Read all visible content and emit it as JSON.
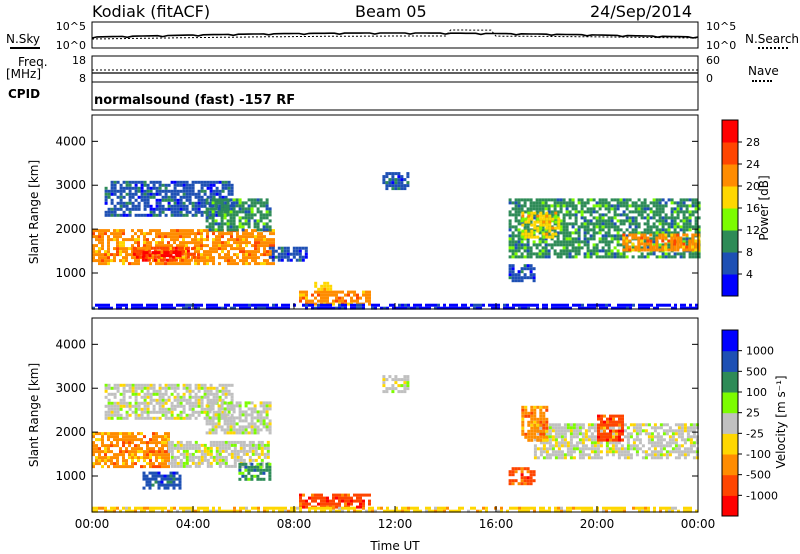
{
  "header": {
    "station": "Kodiak (fitACF)",
    "beam": "Beam 05",
    "date": "24/Sep/2014"
  },
  "status_panels": {
    "nsky_label": "N.Sky",
    "nsky_ticks": [
      "10^5",
      "10^0"
    ],
    "nsearch_label": "N.Search",
    "nsearch_ticks": [
      "10^5",
      "10^0"
    ],
    "freq_label": "Freq.",
    "freq_unit": "[MHz]",
    "freq_ticks": [
      "18",
      "8"
    ],
    "nave_label": "Nave",
    "nave_ticks": [
      "60",
      "0"
    ],
    "cpid_label": "CPID",
    "cpid_text": "normalsound (fast) -157 RF"
  },
  "chart_data": [
    {
      "type": "heatmap",
      "name": "power",
      "ylabel": "Slant Range [km]",
      "yticks": [
        "4000",
        "3000",
        "2000",
        "1000"
      ],
      "ylim": [
        180,
        4600
      ],
      "xlim": [
        0,
        24
      ],
      "xticks": [],
      "colorbar_label": "Power [dB]",
      "colorbar_ticks": [
        "28",
        "24",
        "20",
        "16",
        "12",
        "8",
        "4"
      ],
      "colors": [
        "#0000ff",
        "#1e50b4",
        "#2e8b57",
        "#7cfc00",
        "#ffd700",
        "#ff8c00",
        "#ff4500",
        "#ff0000"
      ],
      "regions": [
        {
          "t0": 0.0,
          "t1": 7.2,
          "r0": 1200,
          "r1": 2000,
          "level": 5
        },
        {
          "t0": 1.5,
          "t1": 4.0,
          "r0": 1300,
          "r1": 1600,
          "level": 6
        },
        {
          "t0": 2.0,
          "t1": 3.5,
          "r0": 1400,
          "r1": 1500,
          "level": 7
        },
        {
          "t0": 0.5,
          "t1": 5.5,
          "r0": 2300,
          "r1": 3100,
          "level": 1
        },
        {
          "t0": 4.5,
          "t1": 7.0,
          "r0": 2000,
          "r1": 2700,
          "level": 2
        },
        {
          "t0": 7.0,
          "t1": 8.5,
          "r0": 1300,
          "r1": 1600,
          "level": 1
        },
        {
          "t0": 8.2,
          "t1": 11.0,
          "r0": 300,
          "r1": 600,
          "level": 5
        },
        {
          "t0": 8.8,
          "t1": 9.5,
          "r0": 600,
          "r1": 800,
          "level": 4
        },
        {
          "t0": 11.5,
          "t1": 12.5,
          "r0": 2900,
          "r1": 3300,
          "level": 1
        },
        {
          "t0": 16.5,
          "t1": 24.0,
          "r0": 1400,
          "r1": 2700,
          "level": 2
        },
        {
          "t0": 21.0,
          "t1": 24.0,
          "r0": 1500,
          "r1": 1900,
          "level": 5
        },
        {
          "t0": 17.0,
          "t1": 18.5,
          "r0": 1800,
          "r1": 2400,
          "level": 4
        },
        {
          "t0": 16.5,
          "t1": 17.5,
          "r0": 800,
          "r1": 1200,
          "level": 1
        },
        {
          "t0": 0.0,
          "t1": 24.0,
          "r0": 190,
          "r1": 300,
          "level": 0
        }
      ]
    },
    {
      "type": "heatmap",
      "name": "velocity",
      "ylabel": "Slant Range [km]",
      "yticks": [
        "4000",
        "3000",
        "2000",
        "1000"
      ],
      "ylim": [
        180,
        4600
      ],
      "xlim": [
        0,
        24
      ],
      "xticks": [
        "00:00",
        "04:00",
        "08:00",
        "12:00",
        "16:00",
        "20:00",
        "00:00"
      ],
      "xlabel": "Time UT",
      "colorbar_label": "Velocity [m s⁻¹]",
      "colorbar_ticks": [
        "1000",
        "500",
        "100",
        "25",
        "-25",
        "-100",
        "-500",
        "-1000"
      ],
      "colors": [
        "#ff0000",
        "#ff4500",
        "#ff8c00",
        "#ffd700",
        "#c0c0c0",
        "#7cfc00",
        "#2e8b57",
        "#1e50b4",
        "#0000ff"
      ],
      "regions": [
        {
          "t0": 0.0,
          "t1": 3.0,
          "r0": 1200,
          "r1": 2000,
          "level": 2
        },
        {
          "t0": 3.0,
          "t1": 7.0,
          "r0": 1200,
          "r1": 1800,
          "level": 4
        },
        {
          "t0": 0.5,
          "t1": 5.5,
          "r0": 2300,
          "r1": 3100,
          "level": 4
        },
        {
          "t0": 4.5,
          "t1": 7.0,
          "r0": 2000,
          "r1": 2700,
          "level": 4
        },
        {
          "t0": 5.8,
          "t1": 7.0,
          "r0": 900,
          "r1": 1300,
          "level": 6
        },
        {
          "t0": 2.0,
          "t1": 3.5,
          "r0": 700,
          "r1": 1100,
          "level": 7
        },
        {
          "t0": 8.2,
          "t1": 11.0,
          "r0": 300,
          "r1": 600,
          "level": 1
        },
        {
          "t0": 11.5,
          "t1": 12.5,
          "r0": 2900,
          "r1": 3300,
          "level": 4
        },
        {
          "t0": 17.5,
          "t1": 24.0,
          "r0": 1400,
          "r1": 2200,
          "level": 4
        },
        {
          "t0": 16.5,
          "t1": 17.5,
          "r0": 800,
          "r1": 1200,
          "level": 1
        },
        {
          "t0": 17.0,
          "t1": 18.0,
          "r0": 1800,
          "r1": 2600,
          "level": 2
        },
        {
          "t0": 20.0,
          "t1": 21.0,
          "r0": 1800,
          "r1": 2400,
          "level": 1
        },
        {
          "t0": 0.0,
          "t1": 24.0,
          "r0": 190,
          "r1": 300,
          "level": 3
        }
      ]
    }
  ]
}
